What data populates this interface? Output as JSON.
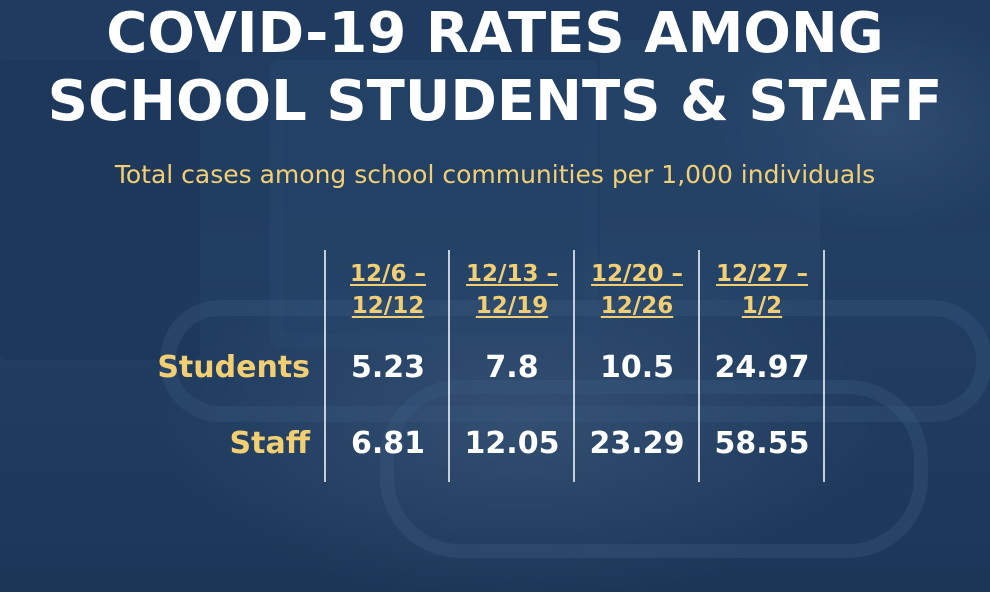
{
  "slide": {
    "title_line_1": "COVID-19 RATES AMONG",
    "title_line_2": "SCHOOL STUDENTS & STAFF",
    "subtitle": "Total cases among school communities per 1,000 individuals"
  },
  "table": {
    "columns": [
      {
        "line1": "12/6 –",
        "line2": "12/12"
      },
      {
        "line1": "12/13 –",
        "line2": "12/19"
      },
      {
        "line1": "12/20 –",
        "line2": "12/26"
      },
      {
        "line1": "12/27 –",
        "line2": "1/2"
      }
    ],
    "rows": [
      {
        "label": "Students",
        "values": [
          "5.23",
          "7.8",
          "10.5",
          "24.97"
        ]
      },
      {
        "label": "Staff",
        "values": [
          "6.81",
          "12.05",
          "23.29",
          "58.55"
        ]
      }
    ]
  },
  "colors": {
    "background": "#1e3a5c",
    "title": "#ffffff",
    "accent_gold": "#f2cf73"
  }
}
